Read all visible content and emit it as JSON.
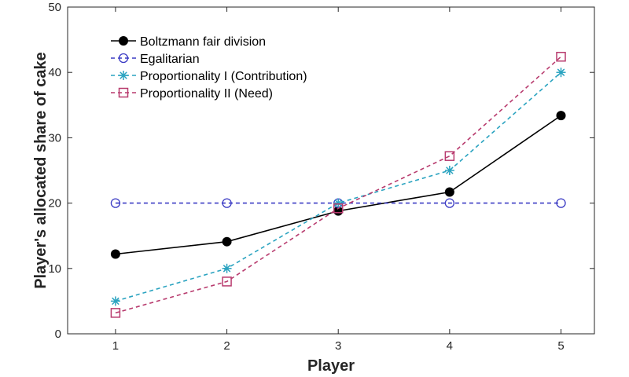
{
  "chart_data": {
    "type": "line",
    "title": "",
    "xlabel": "Player",
    "ylabel": "Player's allocated share of cake",
    "x": [
      1,
      2,
      3,
      4,
      5
    ],
    "xlim": [
      0.57,
      5.3
    ],
    "ylim": [
      0,
      50
    ],
    "xticks": [
      1,
      2,
      3,
      4,
      5
    ],
    "yticks": [
      0,
      10,
      20,
      30,
      40,
      50
    ],
    "grid": false,
    "legend_position": "top-left",
    "series": [
      {
        "name": "Boltzmann fair division",
        "values": [
          12.2,
          14.1,
          18.8,
          21.7,
          33.4
        ],
        "color": "#000000",
        "line": "solid",
        "marker": "filled-circle"
      },
      {
        "name": "Egalitarian",
        "values": [
          20,
          20,
          20,
          20,
          20
        ],
        "color": "#3b3bc4",
        "line": "dashed",
        "marker": "open-circle"
      },
      {
        "name": "Proportionality I (Contribution)",
        "values": [
          5,
          10,
          20,
          25,
          40
        ],
        "color": "#2aa3c0",
        "line": "dashed",
        "marker": "asterisk"
      },
      {
        "name": "Proportionality II (Need)",
        "values": [
          3.2,
          8,
          19.2,
          27.2,
          42.4
        ],
        "color": "#b83b6e",
        "line": "dashed",
        "marker": "open-square"
      }
    ]
  }
}
